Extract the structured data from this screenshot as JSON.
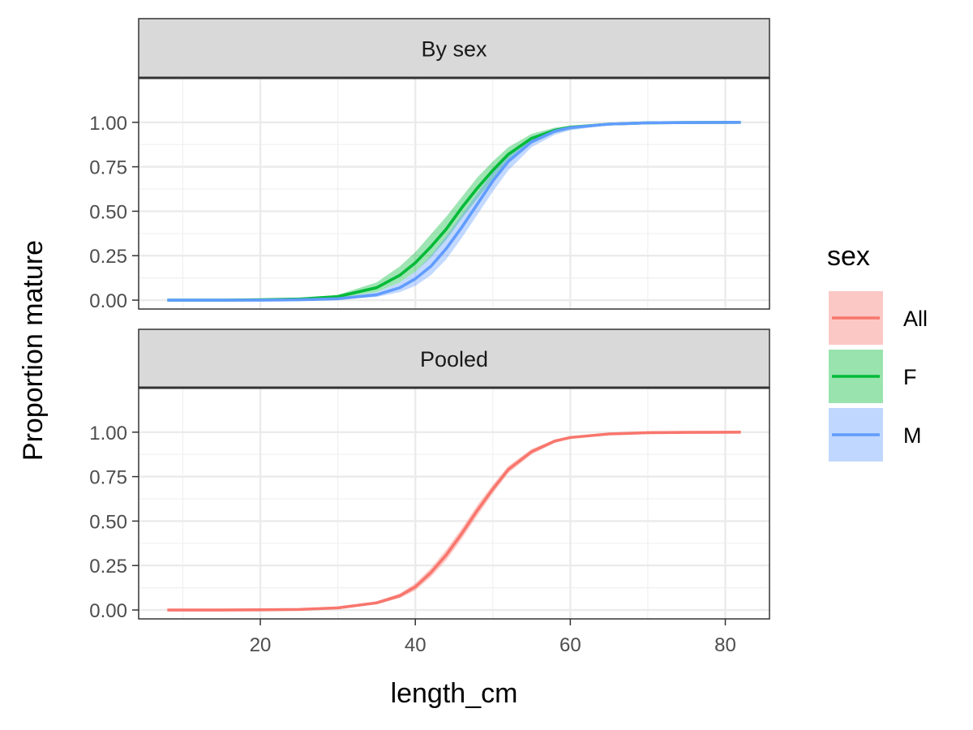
{
  "chart_data": {
    "type": "line",
    "xlabel": "length_cm",
    "ylabel": "Proportion mature",
    "xlim": [
      4.3,
      85.7
    ],
    "ylim": [
      0,
      1
    ],
    "x_ticks": [
      20,
      40,
      60,
      80
    ],
    "x_tick_labels": [
      "20",
      "40",
      "60",
      "80"
    ],
    "y_ticks": [
      0,
      0.25,
      0.5,
      0.75,
      1
    ],
    "y_tick_labels": [
      "0.00",
      "0.25",
      "0.50",
      "0.75",
      "1.00"
    ],
    "grid": true,
    "legend": {
      "title": "sex",
      "position": "right",
      "entries": [
        {
          "label": "All",
          "color": "#f8766d"
        },
        {
          "label": "F",
          "color": "#00ba38"
        },
        {
          "label": "M",
          "color": "#619cff"
        }
      ]
    },
    "panels": [
      {
        "strip": "By sex",
        "series": [
          {
            "name": "F",
            "color": "#00ba38",
            "x": [
              8,
              15,
              20,
              25,
              30,
              35,
              38,
              40,
              42,
              44,
              46,
              48,
              50,
              52,
              55,
              58,
              60,
              65,
              70,
              75,
              82
            ],
            "y": [
              0.0,
              0.0,
              0.002,
              0.006,
              0.02,
              0.07,
              0.14,
              0.21,
              0.3,
              0.4,
              0.52,
              0.63,
              0.73,
              0.82,
              0.91,
              0.955,
              0.972,
              0.99,
              0.997,
              0.999,
              1.0
            ],
            "lower": [
              0.0,
              0.0,
              0.001,
              0.003,
              0.012,
              0.045,
              0.1,
              0.16,
              0.24,
              0.34,
              0.46,
              0.57,
              0.68,
              0.78,
              0.88,
              0.94,
              0.96,
              0.985,
              0.995,
              0.998,
              1.0
            ],
            "upper": [
              0.0,
              0.0,
              0.004,
              0.01,
              0.03,
              0.1,
              0.19,
              0.27,
              0.37,
              0.47,
              0.58,
              0.69,
              0.78,
              0.86,
              0.935,
              0.97,
              0.982,
              0.995,
              0.999,
              1.0,
              1.0
            ]
          },
          {
            "name": "M",
            "color": "#619cff",
            "x": [
              8,
              15,
              20,
              25,
              30,
              35,
              38,
              40,
              42,
              44,
              46,
              48,
              50,
              52,
              55,
              58,
              60,
              65,
              70,
              75,
              82
            ],
            "y": [
              0.0,
              0.0,
              0.0,
              0.002,
              0.008,
              0.03,
              0.07,
              0.12,
              0.19,
              0.29,
              0.41,
              0.54,
              0.67,
              0.78,
              0.89,
              0.95,
              0.97,
              0.99,
              0.997,
              0.999,
              1.0
            ],
            "lower": [
              0.0,
              0.0,
              0.0,
              0.001,
              0.004,
              0.018,
              0.045,
              0.08,
              0.14,
              0.23,
              0.35,
              0.48,
              0.61,
              0.73,
              0.86,
              0.93,
              0.955,
              0.985,
              0.995,
              0.998,
              1.0
            ],
            "upper": [
              0.0,
              0.0,
              0.001,
              0.004,
              0.013,
              0.045,
              0.1,
              0.16,
              0.25,
              0.36,
              0.48,
              0.6,
              0.72,
              0.82,
              0.92,
              0.965,
              0.98,
              0.995,
              0.999,
              1.0,
              1.0
            ]
          }
        ]
      },
      {
        "strip": "Pooled",
        "series": [
          {
            "name": "All",
            "color": "#f8766d",
            "x": [
              8,
              15,
              20,
              25,
              30,
              35,
              38,
              40,
              42,
              44,
              46,
              48,
              50,
              52,
              55,
              58,
              60,
              65,
              70,
              75,
              82
            ],
            "y": [
              0.0,
              0.0,
              0.001,
              0.003,
              0.012,
              0.04,
              0.08,
              0.13,
              0.21,
              0.31,
              0.43,
              0.56,
              0.68,
              0.79,
              0.89,
              0.95,
              0.97,
              0.99,
              0.997,
              0.999,
              1.0
            ],
            "lower": [
              0.0,
              0.0,
              0.0,
              0.002,
              0.009,
              0.032,
              0.067,
              0.11,
              0.185,
              0.28,
              0.4,
              0.53,
              0.655,
              0.77,
              0.875,
              0.94,
              0.963,
              0.987,
              0.996,
              0.998,
              1.0
            ],
            "upper": [
              0.0,
              0.0,
              0.002,
              0.004,
              0.015,
              0.048,
              0.093,
              0.15,
              0.235,
              0.34,
              0.46,
              0.59,
              0.705,
              0.81,
              0.905,
              0.958,
              0.977,
              0.993,
              0.998,
              1.0,
              1.0
            ]
          }
        ]
      }
    ]
  }
}
